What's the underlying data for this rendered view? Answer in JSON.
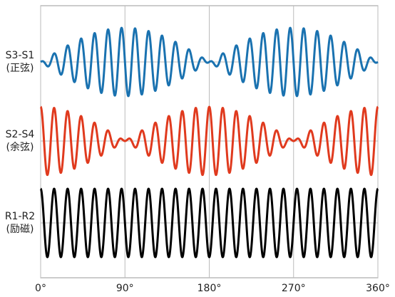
{
  "chart_data": {
    "type": "resolver-waveform",
    "xlim": [
      0,
      360
    ],
    "xticks": [
      {
        "value": 0,
        "label": "0°"
      },
      {
        "value": 90,
        "label": "90°"
      },
      {
        "value": 180,
        "label": "180°"
      },
      {
        "value": 270,
        "label": "270°"
      },
      {
        "value": 360,
        "label": "360°"
      }
    ],
    "grid": true,
    "carrier_cycles": 25,
    "series": [
      {
        "label": [
          "S3-S1",
          "(正弦)"
        ],
        "color": "#1a72b0",
        "envelope": "sin"
      },
      {
        "label": [
          "S2-S4",
          "(余弦)"
        ],
        "color": "#e03a1e",
        "envelope": "cos"
      },
      {
        "label": [
          "R1-R2",
          "(励磁)"
        ],
        "color": "#000000",
        "envelope": "none"
      }
    ]
  }
}
